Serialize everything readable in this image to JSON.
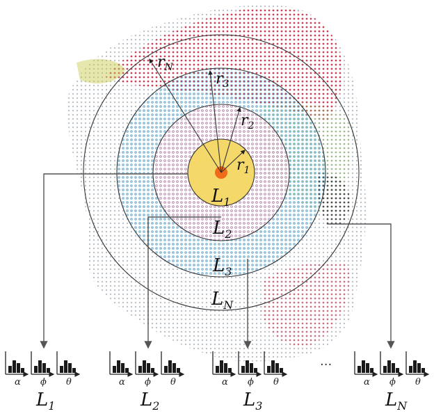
{
  "rings": [
    {
      "label": "L",
      "sub": "1",
      "radius_label": "r",
      "radius_sub": "1"
    },
    {
      "label": "L",
      "sub": "2",
      "radius_label": "r",
      "radius_sub": "2"
    },
    {
      "label": "L",
      "sub": "3",
      "radius_label": "r",
      "radius_sub": "3"
    },
    {
      "label": "L",
      "sub": "N",
      "radius_label": "r",
      "radius_sub": "N"
    }
  ],
  "histogram_groups": [
    {
      "label": "L",
      "sub": "1"
    },
    {
      "label": "L",
      "sub": "2"
    },
    {
      "label": "L",
      "sub": "3"
    },
    {
      "label": "L",
      "sub": "N"
    }
  ],
  "feature_symbols": [
    "α",
    "ϕ",
    "θ"
  ],
  "ellipsis": "···",
  "colors": {
    "core": "#f4d96a",
    "core_center": "#f06a1a",
    "ring_stroke": "#333333",
    "arrow": "#555555"
  }
}
